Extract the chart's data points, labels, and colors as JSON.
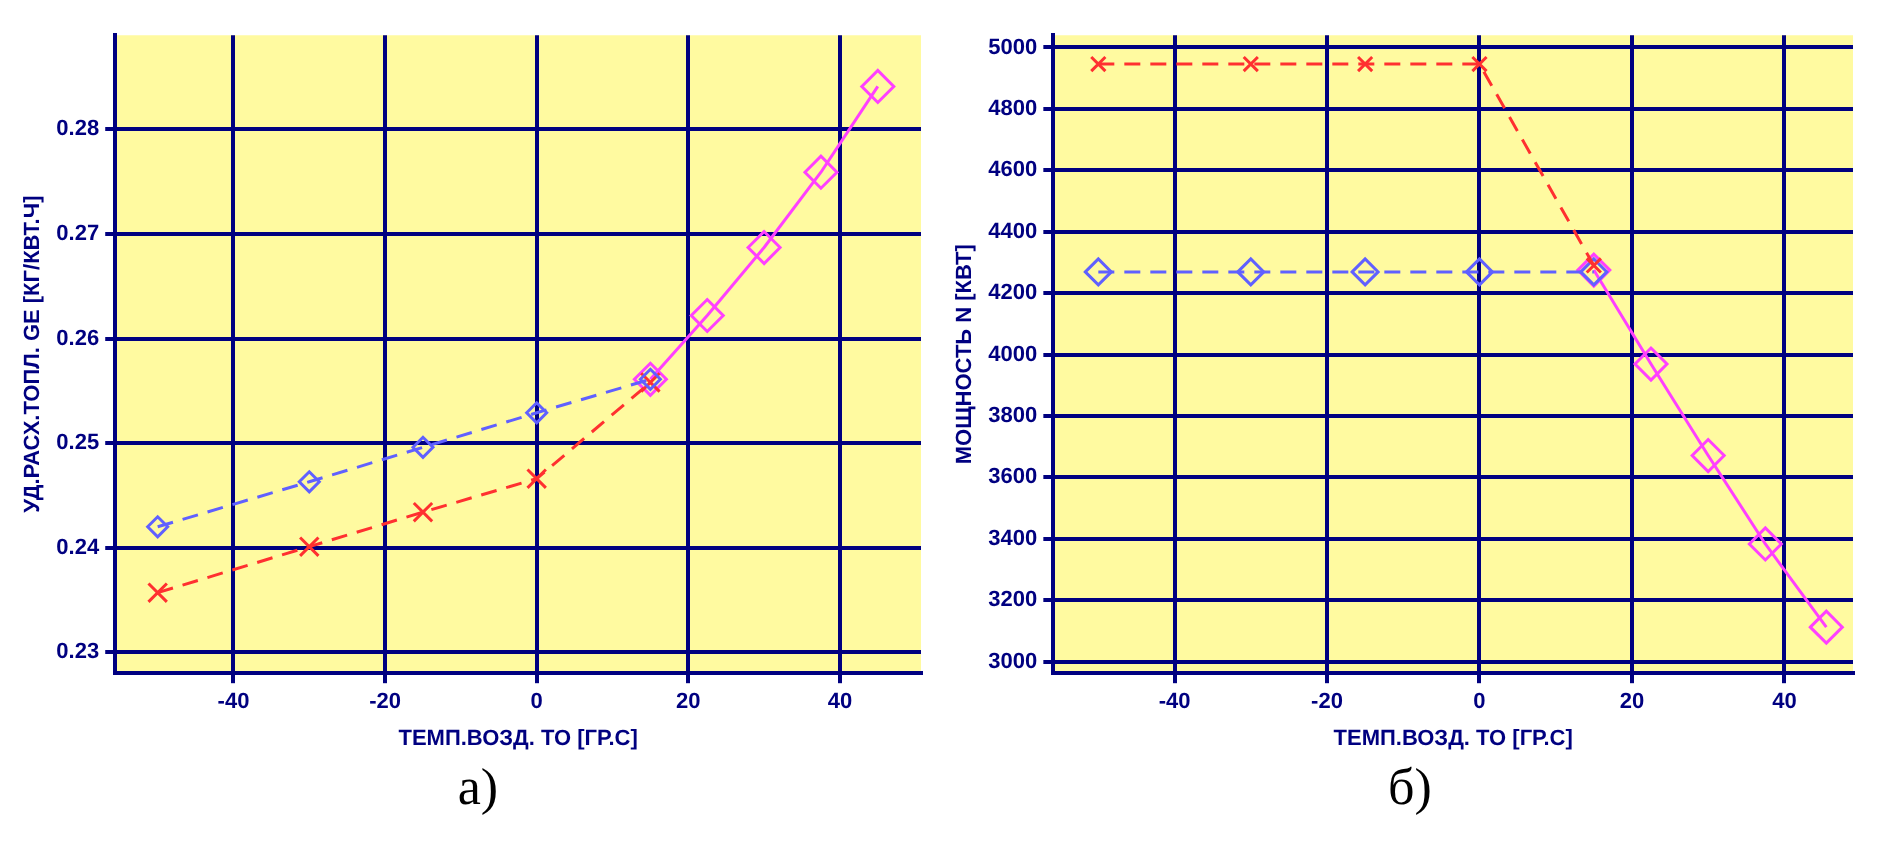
{
  "chart_data": [
    {
      "type": "line",
      "xlabel": "ТЕМП.ВОЗД. TO [ГР.С]",
      "ylabel": "УД.РАСХ.ТОПЛ. GE [КГ/КВТ.Ч]",
      "xlim": [
        -55.6,
        50.7
      ],
      "ylim": [
        0.228,
        0.289
      ],
      "xticks": [
        -40,
        -20,
        0,
        20,
        40
      ],
      "yticks": [
        0.23,
        0.24,
        0.25,
        0.26,
        0.27,
        0.28
      ],
      "grid": true,
      "annotations": [
        "а)"
      ],
      "series": [
        {
          "color": "#6060ff",
          "x": [
            -50,
            -30,
            -15,
            0,
            15
          ],
          "values": [
            0.242,
            0.2463,
            0.2496,
            0.2529,
            0.2561
          ],
          "marker": "diamond",
          "line_style": "dashed"
        },
        {
          "color": "#ff3030",
          "x": [
            -50,
            -30,
            -15,
            0,
            15
          ],
          "values": [
            0.2357,
            0.2401,
            0.2434,
            0.2466,
            0.2558
          ],
          "marker": "cross",
          "line_style": "dashed"
        },
        {
          "color": "#ff40ff",
          "x": [
            15,
            22.5,
            30,
            37.5,
            45
          ],
          "values": [
            0.2561,
            0.2622,
            0.2687,
            0.2759,
            0.2841
          ],
          "marker": "diamond",
          "line_style": "solid"
        }
      ]
    },
    {
      "type": "line",
      "xlabel": "ТЕМП.ВОЗД. TO [ГР.С]",
      "ylabel": "МОЩНОСТЬ N [КВТ]",
      "xlim": [
        -55.9,
        49
      ],
      "ylim": [
        2962,
        5040
      ],
      "xticks": [
        -40,
        -20,
        0,
        20,
        40
      ],
      "yticks": [
        3000,
        3200,
        3400,
        3600,
        3800,
        4000,
        4200,
        4400,
        4600,
        4800,
        5000
      ],
      "grid": true,
      "annotations": [
        "б)"
      ],
      "series": [
        {
          "color": "#ff3030",
          "x": [
            -50,
            -30,
            -15,
            0,
            15
          ],
          "values": [
            4946,
            4946,
            4946,
            4946,
            4290
          ],
          "marker": "cross",
          "line_style": "dashed"
        },
        {
          "color": "#6060ff",
          "x": [
            -50,
            -30,
            -15,
            0,
            15
          ],
          "values": [
            4269,
            4269,
            4269,
            4269,
            4269
          ],
          "marker": "diamond",
          "line_style": "dashed"
        },
        {
          "color": "#ff40ff",
          "x": [
            15,
            22.5,
            30,
            37.5,
            45.5
          ],
          "values": [
            4275,
            3969,
            3671,
            3383,
            3112
          ],
          "marker": "diamond",
          "line_style": "solid"
        }
      ]
    }
  ]
}
